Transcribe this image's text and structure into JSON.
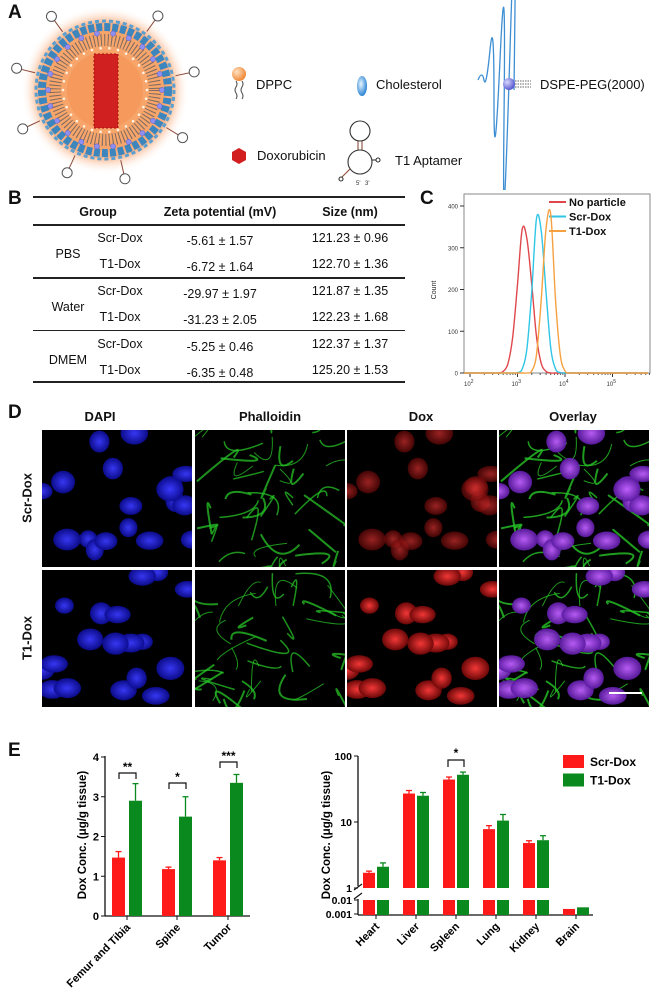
{
  "panels": {
    "a": "A",
    "b": "B",
    "c": "C",
    "d": "D",
    "e": "E"
  },
  "panel_a": {
    "legend": [
      {
        "label": "DPPC",
        "icon": "dppc-lipid-icon"
      },
      {
        "label": "Cholesterol",
        "icon": "cholesterol-icon"
      },
      {
        "label": "DSPE-PEG(2000)",
        "icon": "dspe-peg-icon"
      },
      {
        "label": "Doxorubicin",
        "icon": "doxorubicin-icon"
      },
      {
        "label": "T1 Aptamer",
        "icon": "aptamer-icon"
      }
    ],
    "aptamer_ends": [
      "5'",
      "3'"
    ]
  },
  "table": {
    "headers": [
      "Group",
      "Zeta potential (mV)",
      "Size (nm)"
    ],
    "groups": [
      {
        "name": "PBS",
        "rows": [
          {
            "sample": "Scr-Dox",
            "zeta": "-5.61 ± 1.57",
            "size": "121.23 ± 0.96"
          },
          {
            "sample": "T1-Dox",
            "zeta": "-6.72 ± 1.64",
            "size": "122.70 ± 1.36"
          }
        ]
      },
      {
        "name": "Water",
        "rows": [
          {
            "sample": "Scr-Dox",
            "zeta": "-29.97 ± 1.97",
            "size": "121.87 ± 1.35"
          },
          {
            "sample": "T1-Dox",
            "zeta": "-31.23 ± 2.05",
            "size": "122.23 ± 1.68"
          }
        ]
      },
      {
        "name": "DMEM",
        "rows": [
          {
            "sample": "Scr-Dox",
            "zeta": "-5.25 ± 0.46",
            "size": "122.37 ± 1.37"
          },
          {
            "sample": "T1-Dox",
            "zeta": "-6.35 ± 0.48",
            "size": "125.20 ± 1.53"
          }
        ]
      }
    ]
  },
  "panel_d": {
    "columns": [
      "DAPI",
      "Phalloidin",
      "Dox",
      "Overlay"
    ],
    "rows": [
      "Scr-Dox",
      "T1-Dox"
    ],
    "colors": {
      "dapi": "#1a1aff",
      "phalloidin": "#22c022",
      "dox": "#d01818",
      "overlay_nucleus": "#9a3cd0"
    }
  },
  "chart_data": [
    {
      "type": "line",
      "panel": "C",
      "ylabel": "Count",
      "xscale": "log",
      "xlim": [
        75,
        630000
      ],
      "ylim": [
        0,
        400
      ],
      "yticks": [
        "0",
        "100",
        "200",
        "300",
        "400"
      ],
      "xticks": [
        {
          "base": "10",
          "exp": "2"
        },
        {
          "base": "10",
          "exp": "3"
        },
        {
          "base": "10",
          "exp": "4"
        },
        {
          "base": "10",
          "exp": "5"
        }
      ],
      "legend_position": "top-right",
      "x": [
        316,
        398,
        501,
        631,
        794,
        1000,
        1259,
        1585,
        1995,
        2512,
        3162,
        3981,
        5012,
        6310,
        7943,
        10000,
        12589,
        15849
      ],
      "series": [
        {
          "name": "No particle",
          "color": "#e0474c",
          "values": [
            0,
            0,
            4,
            23,
            87,
            212,
            345,
            320,
            212,
            87,
            23,
            4,
            0,
            0,
            0,
            0,
            0,
            0
          ]
        },
        {
          "name": "Scr-Dox",
          "color": "#2fc6e6",
          "values": [
            0,
            0,
            0,
            0,
            0,
            1,
            10,
            60,
            195,
            370,
            340,
            195,
            60,
            10,
            1,
            0,
            0,
            0
          ]
        },
        {
          "name": "T1-Dox",
          "color": "#f5a142",
          "values": [
            0,
            0,
            0,
            0,
            0,
            0,
            0,
            0,
            5,
            44,
            176,
            345,
            380,
            176,
            44,
            5,
            0,
            0
          ]
        }
      ]
    },
    {
      "type": "bar",
      "panel": "E-left",
      "ylabel": "Dox Conc.  (μg/g tissue)",
      "ylim": [
        0,
        4
      ],
      "yticks": [
        "0",
        "1",
        "2",
        "3",
        "4"
      ],
      "categories": [
        "Femur and Tibia",
        "Spine",
        "Tumor"
      ],
      "series": [
        {
          "name": "Scr-Dox",
          "color": "#ff1a1a",
          "values": [
            1.47,
            1.18,
            1.4
          ],
          "errors": [
            0.15,
            0.05,
            0.07
          ]
        },
        {
          "name": "T1-Dox",
          "color": "#0a8a1e",
          "values": [
            2.9,
            2.5,
            3.35
          ],
          "errors": [
            0.43,
            0.5,
            0.21
          ]
        }
      ],
      "significance": [
        "**",
        "*",
        "***"
      ]
    },
    {
      "type": "bar",
      "panel": "E-right",
      "ylabel": "Dox Conc.  (μg/g tissue)",
      "yscale": "log (broken axis)",
      "yticks": [
        "0.001",
        "0.01",
        "1",
        "10",
        "100"
      ],
      "categories": [
        "Heart",
        "Liver",
        "Spleen",
        "Lung",
        "Kidney",
        "Brain"
      ],
      "series": [
        {
          "name": "Scr-Dox",
          "color": "#ff1a1a",
          "values": [
            1.7,
            27,
            44,
            7.8,
            4.8,
            0.0023
          ],
          "errors": [
            0.1,
            3,
            4,
            1.0,
            0.4,
            0
          ]
        },
        {
          "name": "T1-Dox",
          "color": "#0a8a1e",
          "values": [
            2.1,
            25,
            52,
            10.5,
            5.3,
            0.003
          ],
          "errors": [
            0.3,
            3,
            5,
            2.5,
            0.9,
            0
          ]
        }
      ],
      "significance": [
        {
          "category": "Spleen",
          "label": "*"
        }
      ],
      "legend": [
        "Scr-Dox",
        "T1-Dox"
      ],
      "legend_position": "top-right"
    }
  ]
}
